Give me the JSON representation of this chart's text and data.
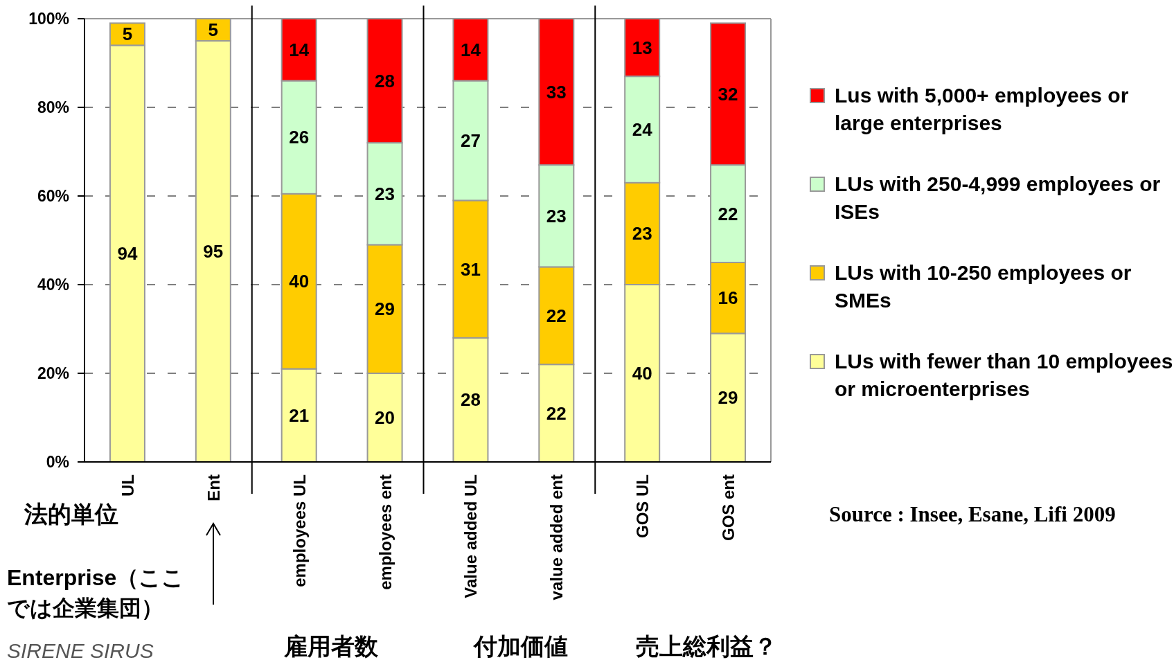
{
  "chart_data": {
    "type": "bar",
    "stacked": true,
    "categories": [
      "UL",
      "Ent",
      "employees UL",
      "employees ent",
      "Value added UL",
      "value added ent",
      "GOS UL",
      "GOS ent"
    ],
    "series": [
      {
        "name": "LUs with fewer than 10 employees or microenterprises",
        "color": "#ffff99",
        "values": [
          94,
          95,
          21,
          20,
          28,
          22,
          40,
          29
        ],
        "value_labels": [
          "94",
          "95",
          "21",
          "20",
          "28",
          "22",
          "40",
          "29"
        ]
      },
      {
        "name": "LUs with 10-250 employees or SMEs",
        "color": "#ffcc00",
        "values": [
          5,
          5,
          39.5,
          29,
          31,
          22,
          23,
          16
        ],
        "value_labels": [
          "5",
          "5",
          "40",
          "29",
          "31",
          "22",
          "23",
          "16"
        ]
      },
      {
        "name": "LUs with 250-4,999 employees or ISEs",
        "color": "#ccffcc",
        "values": [
          null,
          null,
          25.5,
          23,
          27,
          23,
          24,
          22
        ],
        "value_labels": [
          null,
          null,
          "26",
          "23",
          "27",
          "23",
          "24",
          "22"
        ]
      },
      {
        "name": "Lus with 5,000+ employees or large enterprises",
        "color": "#ff0000",
        "values": [
          null,
          null,
          14,
          28,
          14,
          33,
          13,
          32
        ],
        "value_labels": [
          null,
          null,
          "14",
          "28",
          "14",
          "33",
          "13",
          "32"
        ]
      }
    ],
    "ylim": [
      0,
      100
    ],
    "yticks": [
      {
        "value": 0,
        "label": "0%"
      },
      {
        "value": 20,
        "label": "20%"
      },
      {
        "value": 40,
        "label": "40%"
      },
      {
        "value": 60,
        "label": "60%"
      },
      {
        "value": 80,
        "label": "80%"
      },
      {
        "value": 100,
        "label": "100%"
      }
    ],
    "grid": "y",
    "line_style": "dashed",
    "legend": "right",
    "annotations": [
      "法的単位",
      "Enterprise（ここでは企業集団）",
      "雇用者数",
      "付加価値",
      "売上総利益？",
      "Source : Insee, Esane, Lifi 2009",
      "SIRENE SIRUS"
    ]
  }
}
